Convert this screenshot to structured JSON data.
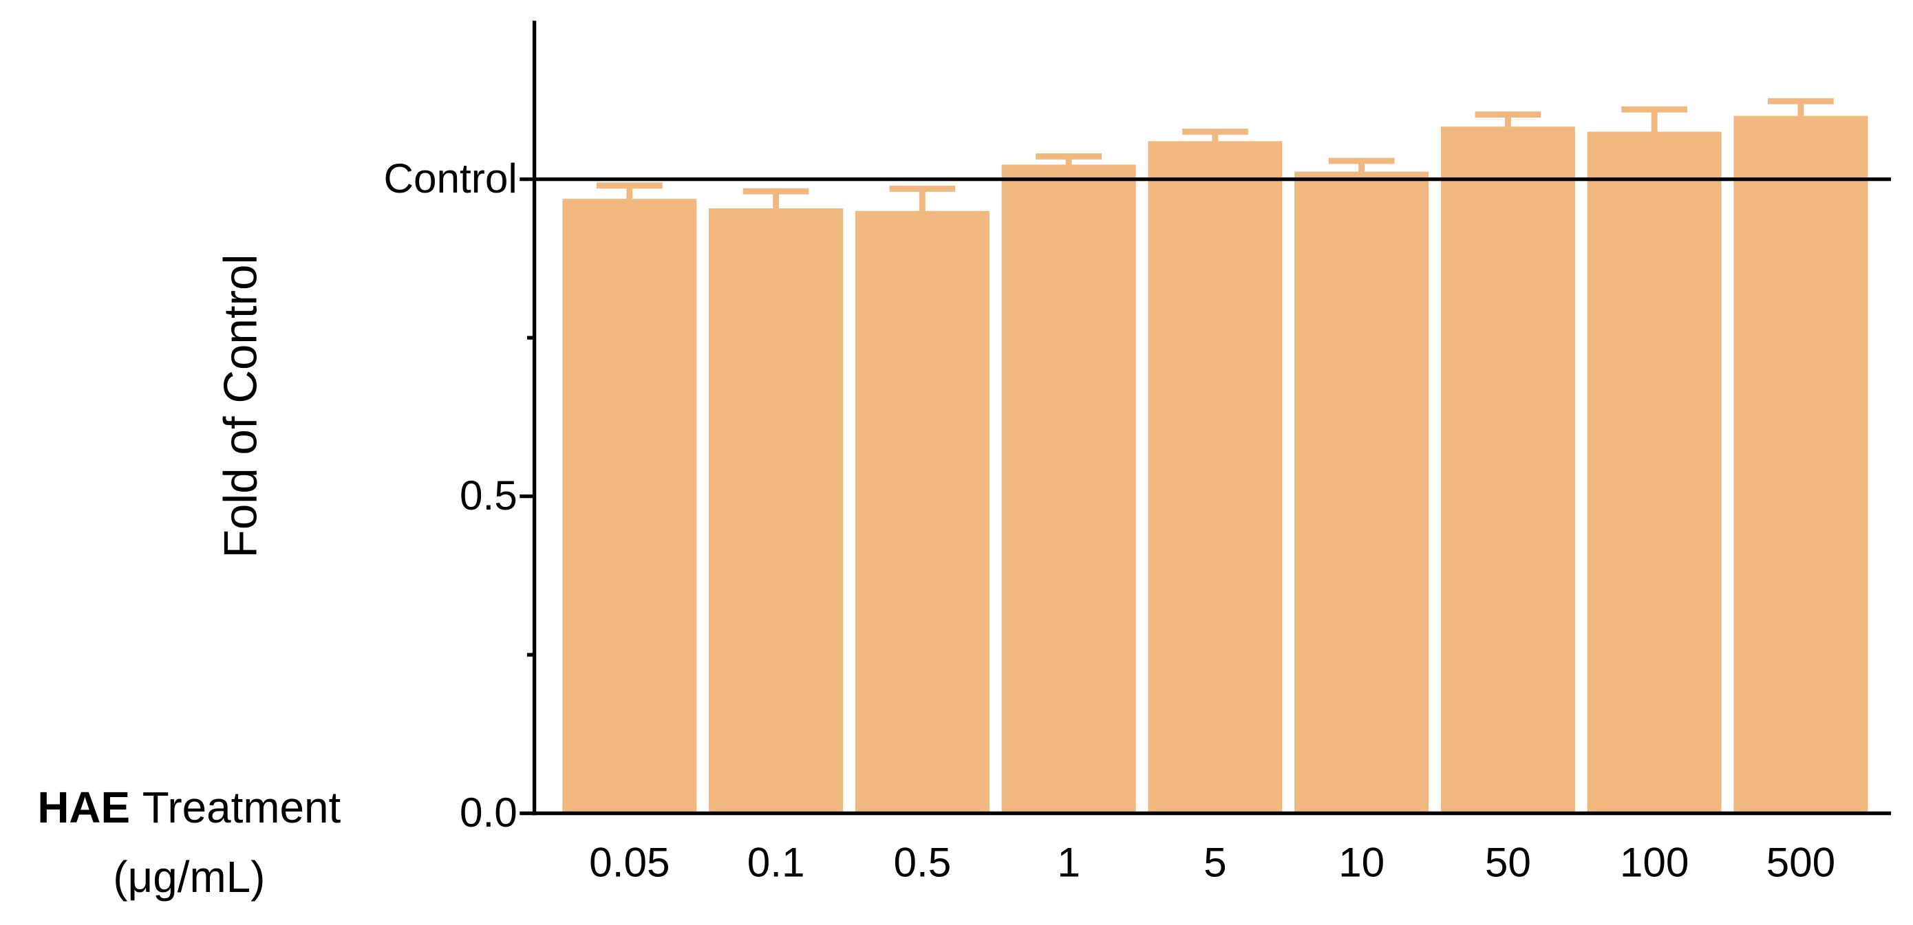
{
  "chart_data": {
    "type": "bar",
    "ylabel": "Fold of Control",
    "xlabel": {
      "bold": "HAE",
      "text": "Treatment",
      "unit": "(μg/mL)"
    },
    "categories": [
      "0.05",
      "0.1",
      "0.5",
      "1",
      "5",
      "10",
      "50",
      "100",
      "500"
    ],
    "values": [
      0.969,
      0.954,
      0.95,
      1.023,
      1.06,
      1.012,
      1.083,
      1.075,
      1.1
    ],
    "errors": [
      0.021,
      0.027,
      0.035,
      0.013,
      0.015,
      0.017,
      0.019,
      0.035,
      0.023
    ],
    "color": "#f0b77e",
    "ylim": [
      0,
      1.25
    ],
    "yticks": [
      {
        "value": 0,
        "label": "0.0"
      },
      0.5,
      {
        "value": 1,
        "label": "Control"
      }
    ],
    "minor_yticks": [
      0.25,
      0.75
    ]
  }
}
